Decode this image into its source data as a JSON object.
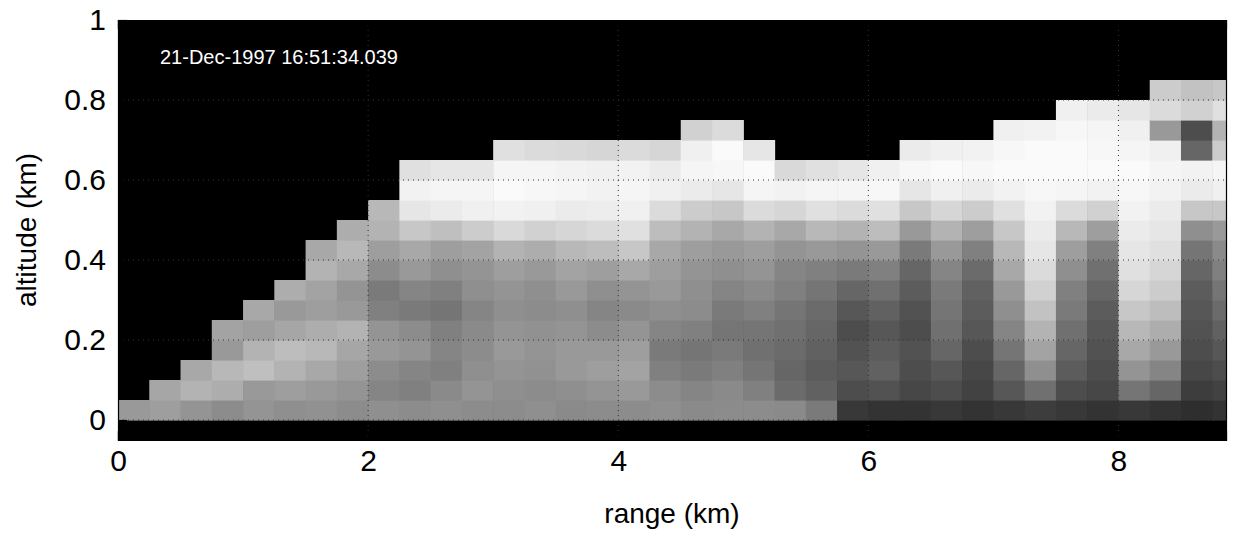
{
  "chart_data": {
    "type": "heatmap",
    "annotation": "21-Dec-1997 16:51:34.039",
    "x_label": "range (km)",
    "y_label": "altitude (km)",
    "xlim": [
      0,
      8.86
    ],
    "ylim": [
      -0.05,
      1
    ],
    "xticks": [
      0,
      2,
      4,
      6,
      8
    ],
    "yticks": [
      0,
      0.2,
      0.4,
      0.6,
      0.8,
      1
    ],
    "grid": true,
    "zlim": [
      0,
      100
    ],
    "x_bins": [
      0,
      0.25,
      0.5,
      0.75,
      1,
      1.25,
      1.5,
      1.75,
      2,
      2.25,
      2.5,
      2.75,
      3,
      3.25,
      3.5,
      3.75,
      4,
      4.25,
      4.5,
      4.75,
      5,
      5.25,
      5.5,
      5.75,
      6,
      6.25,
      6.5,
      6.75,
      7,
      7.25,
      7.5,
      7.75,
      8,
      8.25,
      8.5,
      8.75,
      9
    ],
    "y_bins": [
      0,
      0.05,
      0.1,
      0.15,
      0.2,
      0.25,
      0.3,
      0.35,
      0.4,
      0.45,
      0.5,
      0.55,
      0.6,
      0.65,
      0.7,
      0.75,
      0.8,
      0.85,
      0.9,
      0.95,
      1
    ],
    "z": [
      [
        60,
        null,
        null,
        null,
        null,
        null,
        null,
        null,
        null,
        null,
        null,
        null,
        null,
        null,
        null,
        null,
        null,
        null,
        null,
        null
      ],
      [
        62,
        65,
        null,
        null,
        null,
        null,
        null,
        null,
        null,
        null,
        null,
        null,
        null,
        null,
        null,
        null,
        null,
        null,
        null,
        null
      ],
      [
        58,
        70,
        66,
        null,
        null,
        null,
        null,
        null,
        null,
        null,
        null,
        null,
        null,
        null,
        null,
        null,
        null,
        null,
        null,
        null
      ],
      [
        55,
        68,
        72,
        60,
        64,
        null,
        null,
        null,
        null,
        null,
        null,
        null,
        null,
        null,
        null,
        null,
        null,
        null,
        null,
        null
      ],
      [
        58,
        60,
        75,
        70,
        62,
        66,
        null,
        null,
        null,
        null,
        null,
        null,
        null,
        null,
        null,
        null,
        null,
        null,
        null,
        null
      ],
      [
        56,
        62,
        70,
        74,
        65,
        60,
        68,
        null,
        null,
        null,
        null,
        null,
        null,
        null,
        null,
        null,
        null,
        null,
        null,
        null
      ],
      [
        57,
        60,
        66,
        72,
        68,
        62,
        64,
        70,
        66,
        null,
        null,
        null,
        null,
        null,
        null,
        null,
        null,
        null,
        null,
        null
      ],
      [
        55,
        58,
        62,
        65,
        70,
        60,
        58,
        66,
        72,
        68,
        null,
        null,
        null,
        null,
        null,
        null,
        null,
        null,
        null,
        null
      ],
      [
        56,
        52,
        55,
        60,
        58,
        50,
        48,
        55,
        62,
        70,
        72,
        null,
        null,
        null,
        null,
        null,
        null,
        null,
        null,
        null
      ],
      [
        55,
        50,
        52,
        58,
        55,
        48,
        52,
        60,
        66,
        78,
        90,
        95,
        88,
        null,
        null,
        null,
        null,
        null,
        null,
        null
      ],
      [
        56,
        54,
        50,
        52,
        50,
        46,
        50,
        56,
        62,
        75,
        92,
        96,
        90,
        null,
        null,
        null,
        null,
        null,
        null,
        null
      ],
      [
        55,
        58,
        56,
        55,
        54,
        52,
        56,
        58,
        64,
        80,
        94,
        96,
        90,
        null,
        null,
        null,
        null,
        null,
        null,
        null
      ],
      [
        55,
        56,
        58,
        60,
        58,
        56,
        58,
        62,
        70,
        85,
        95,
        98,
        96,
        88,
        null,
        null,
        null,
        null,
        null,
        null
      ],
      [
        56,
        55,
        57,
        58,
        57,
        55,
        56,
        60,
        68,
        82,
        94,
        97,
        96,
        86,
        null,
        null,
        null,
        null,
        null,
        null
      ],
      [
        54,
        56,
        60,
        60,
        58,
        56,
        60,
        64,
        72,
        84,
        92,
        96,
        95,
        85,
        null,
        null,
        null,
        null,
        null,
        null
      ],
      [
        55,
        58,
        62,
        60,
        55,
        52,
        56,
        62,
        74,
        86,
        93,
        95,
        94,
        84,
        null,
        null,
        null,
        null,
        null,
        null
      ],
      [
        55,
        60,
        64,
        62,
        58,
        54,
        58,
        66,
        78,
        88,
        94,
        96,
        95,
        86,
        null,
        null,
        null,
        null,
        null,
        null
      ],
      [
        56,
        55,
        50,
        48,
        52,
        56,
        60,
        62,
        66,
        74,
        86,
        94,
        92,
        84,
        null,
        null,
        null,
        null,
        null,
        null
      ],
      [
        54,
        52,
        48,
        46,
        50,
        55,
        56,
        58,
        62,
        70,
        80,
        92,
        96,
        94,
        82,
        null,
        null,
        null,
        null,
        null
      ],
      [
        55,
        54,
        50,
        48,
        46,
        48,
        52,
        56,
        60,
        66,
        78,
        90,
        97,
        98,
        86,
        null,
        null,
        null,
        null,
        null
      ],
      [
        55,
        50,
        46,
        44,
        46,
        50,
        54,
        58,
        62,
        70,
        86,
        96,
        98,
        90,
        null,
        null,
        null,
        null,
        null,
        null
      ],
      [
        54,
        42,
        40,
        42,
        44,
        46,
        50,
        52,
        58,
        66,
        84,
        95,
        85,
        null,
        null,
        null,
        null,
        null,
        null,
        null
      ],
      [
        48,
        38,
        36,
        38,
        40,
        42,
        46,
        50,
        60,
        72,
        88,
        96,
        88,
        null,
        null,
        null,
        null,
        null,
        null,
        null
      ],
      [
        22,
        30,
        34,
        32,
        30,
        34,
        40,
        48,
        58,
        70,
        86,
        96,
        90,
        null,
        null,
        null,
        null,
        null,
        null,
        null
      ],
      [
        20,
        32,
        38,
        36,
        34,
        38,
        44,
        50,
        60,
        74,
        88,
        97,
        94,
        null,
        null,
        null,
        null,
        null,
        null,
        null
      ],
      [
        20,
        28,
        30,
        32,
        30,
        32,
        36,
        40,
        48,
        60,
        78,
        90,
        97,
        92,
        null,
        null,
        null,
        null,
        null,
        null
      ],
      [
        22,
        30,
        34,
        40,
        44,
        46,
        48,
        52,
        60,
        70,
        84,
        94,
        98,
        94,
        null,
        null,
        null,
        null,
        null,
        null
      ],
      [
        20,
        26,
        28,
        30,
        34,
        36,
        38,
        42,
        50,
        62,
        80,
        92,
        97,
        95,
        null,
        null,
        null,
        null,
        null,
        null
      ],
      [
        22,
        34,
        40,
        46,
        52,
        56,
        60,
        66,
        72,
        78,
        88,
        95,
        98,
        97,
        94,
        null,
        null,
        null,
        null,
        null
      ],
      [
        24,
        44,
        56,
        64,
        70,
        76,
        82,
        86,
        90,
        92,
        95,
        97,
        98,
        98,
        95,
        null,
        null,
        null,
        null,
        null
      ],
      [
        22,
        30,
        36,
        40,
        44,
        48,
        50,
        56,
        62,
        72,
        86,
        96,
        98,
        98,
        97,
        94,
        null,
        null,
        null,
        null
      ],
      [
        20,
        28,
        30,
        32,
        34,
        36,
        40,
        44,
        50,
        62,
        82,
        95,
        98,
        97,
        96,
        92,
        null,
        null,
        null,
        null
      ],
      [
        22,
        46,
        58,
        66,
        72,
        78,
        84,
        88,
        90,
        92,
        95,
        97,
        98,
        96,
        94,
        90,
        null,
        null,
        null,
        null
      ],
      [
        20,
        40,
        52,
        60,
        68,
        74,
        80,
        84,
        88,
        90,
        92,
        95,
        96,
        94,
        60,
        86,
        80,
        null,
        null,
        null
      ],
      [
        18,
        24,
        28,
        30,
        32,
        34,
        36,
        40,
        46,
        56,
        78,
        92,
        95,
        40,
        30,
        82,
        76,
        null,
        null,
        null
      ],
      [
        20,
        26,
        30,
        34,
        38,
        42,
        46,
        50,
        54,
        60,
        78,
        94,
        96,
        80,
        70,
        88,
        78,
        null,
        null,
        null
      ]
    ]
  }
}
